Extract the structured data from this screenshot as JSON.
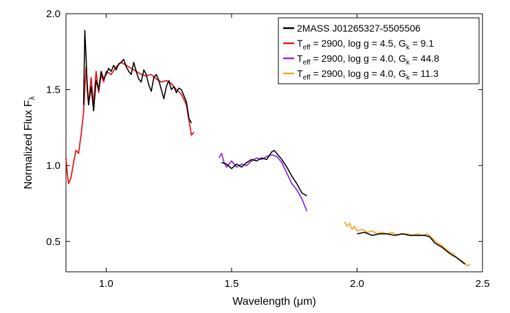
{
  "chart_data": {
    "type": "line",
    "xlabel": "Wavelength (μm)",
    "ylabel": "Normalized Flux F_λ",
    "xlim": [
      0.84,
      2.5
    ],
    "ylim": [
      0.3,
      2.0
    ],
    "x_ticks": [
      1.0,
      1.5,
      2.0,
      2.5
    ],
    "x_tick_labels": [
      "1.0",
      "1.5",
      "2.0",
      "2.5"
    ],
    "y_ticks": [
      0.5,
      1.0,
      1.5,
      2.0
    ],
    "y_tick_labels": [
      "0.5",
      "1.0",
      "1.5",
      "2.0"
    ],
    "grid": false,
    "legend_position": "top-right",
    "series": [
      {
        "name": "2MASS J01265327-5505506",
        "color": "#000000",
        "legend": {
          "base": "2MASS J01265327-5505506"
        },
        "segments": [
          {
            "x": [
              0.91,
              0.915,
              0.92,
              0.925,
              0.93,
              0.94,
              0.95,
              0.96,
              0.97,
              0.98,
              0.99,
              1.0,
              1.01,
              1.02,
              1.03,
              1.04,
              1.05,
              1.06,
              1.07,
              1.08,
              1.09,
              1.1,
              1.11,
              1.12,
              1.13,
              1.14,
              1.15,
              1.16,
              1.17,
              1.18,
              1.19,
              1.2,
              1.21,
              1.22,
              1.23,
              1.24,
              1.25,
              1.26,
              1.27,
              1.28,
              1.29,
              1.3,
              1.31,
              1.32,
              1.33,
              1.34
            ],
            "y": [
              1.4,
              1.89,
              1.72,
              1.5,
              1.4,
              1.52,
              1.36,
              1.56,
              1.5,
              1.62,
              1.57,
              1.6,
              1.64,
              1.62,
              1.66,
              1.63,
              1.67,
              1.68,
              1.7,
              1.65,
              1.62,
              1.6,
              1.68,
              1.62,
              1.57,
              1.55,
              1.63,
              1.6,
              1.53,
              1.49,
              1.58,
              1.6,
              1.56,
              1.5,
              1.44,
              1.52,
              1.56,
              1.5,
              1.52,
              1.48,
              1.51,
              1.5,
              1.46,
              1.42,
              1.31,
              1.28
            ]
          },
          {
            "x": [
              1.46,
              1.48,
              1.5,
              1.52,
              1.54,
              1.56,
              1.58,
              1.6,
              1.62,
              1.64,
              1.66,
              1.67,
              1.68,
              1.7,
              1.72,
              1.74,
              1.76,
              1.78,
              1.8
            ],
            "y": [
              1.02,
              1.01,
              0.98,
              1.01,
              0.99,
              1.02,
              1.04,
              1.03,
              1.05,
              1.04,
              1.09,
              1.1,
              1.08,
              1.04,
              0.99,
              0.93,
              0.88,
              0.82,
              0.8
            ]
          },
          {
            "x": [
              2.0,
              2.03,
              2.06,
              2.09,
              2.12,
              2.15,
              2.18,
              2.21,
              2.24,
              2.27,
              2.29,
              2.31,
              2.34,
              2.37,
              2.4,
              2.43
            ],
            "y": [
              0.55,
              0.56,
              0.54,
              0.55,
              0.55,
              0.54,
              0.55,
              0.54,
              0.54,
              0.54,
              0.53,
              0.49,
              0.46,
              0.42,
              0.39,
              0.35
            ]
          }
        ]
      },
      {
        "name": "T_eff = 2900, log g = 4.5, G_k = 9.1",
        "color": "#e41a1c",
        "legend": {
          "t_main": "T",
          "t_sub": "eff",
          "middle": " = 2900, log g = 4.5, G",
          "g_sub": "k",
          "tail": " = 9.1"
        },
        "segments": [
          {
            "x": [
              0.84,
              0.845,
              0.85,
              0.86,
              0.87,
              0.88,
              0.89,
              0.9,
              0.91,
              0.92,
              0.93,
              0.94,
              0.95,
              0.96,
              0.97,
              0.98,
              0.99,
              1.0,
              1.02,
              1.04,
              1.06,
              1.08,
              1.1,
              1.12,
              1.14,
              1.16,
              1.18,
              1.2,
              1.22,
              1.24,
              1.26,
              1.28,
              1.3,
              1.32,
              1.34,
              1.35
            ],
            "y": [
              1.05,
              0.95,
              0.88,
              0.92,
              1.02,
              1.1,
              1.08,
              1.2,
              1.35,
              1.65,
              1.4,
              1.58,
              1.4,
              1.62,
              1.48,
              1.6,
              1.55,
              1.62,
              1.6,
              1.65,
              1.68,
              1.66,
              1.64,
              1.62,
              1.6,
              1.59,
              1.6,
              1.57,
              1.55,
              1.56,
              1.54,
              1.5,
              1.47,
              1.4,
              1.2,
              1.22
            ]
          }
        ]
      },
      {
        "name": "T_eff = 2900, log g = 4.0, G_k = 44.8",
        "color": "#8a2be2",
        "legend": {
          "t_main": "T",
          "t_sub": "eff",
          "middle": " = 2900, log g = 4.0, G",
          "g_sub": "k",
          "tail": " = 44.8"
        },
        "segments": [
          {
            "x": [
              1.45,
              1.46,
              1.47,
              1.48,
              1.5,
              1.52,
              1.54,
              1.56,
              1.58,
              1.6,
              1.62,
              1.64,
              1.66,
              1.68,
              1.7,
              1.72,
              1.74,
              1.76,
              1.78,
              1.8
            ],
            "y": [
              1.05,
              1.08,
              1.02,
              0.99,
              1.03,
              0.99,
              1.01,
              1.0,
              1.03,
              1.05,
              1.04,
              1.06,
              1.07,
              1.06,
              1.02,
              0.95,
              0.88,
              0.84,
              0.78,
              0.7
            ]
          }
        ]
      },
      {
        "name": "T_eff = 2900, log g = 4.0, G_k = 11.3",
        "color": "#f5a623",
        "legend": {
          "t_main": "T",
          "t_sub": "eff",
          "middle": " = 2900, log g = 4.0, G",
          "g_sub": "k",
          "tail": " = 11.3"
        },
        "segments": [
          {
            "x": [
              1.95,
              1.96,
              1.97,
              1.98,
              1.99,
              2.0,
              2.02,
              2.04,
              2.06,
              2.08,
              2.1,
              2.12,
              2.14,
              2.16,
              2.18,
              2.2,
              2.22,
              2.24,
              2.26,
              2.28,
              2.3,
              2.32,
              2.34,
              2.36,
              2.38,
              2.4,
              2.42,
              2.44,
              2.45
            ],
            "y": [
              0.63,
              0.6,
              0.62,
              0.58,
              0.6,
              0.57,
              0.58,
              0.56,
              0.57,
              0.55,
              0.56,
              0.55,
              0.56,
              0.54,
              0.55,
              0.55,
              0.54,
              0.55,
              0.54,
              0.55,
              0.52,
              0.49,
              0.47,
              0.44,
              0.42,
              0.39,
              0.37,
              0.34,
              0.35
            ]
          }
        ]
      }
    ]
  }
}
